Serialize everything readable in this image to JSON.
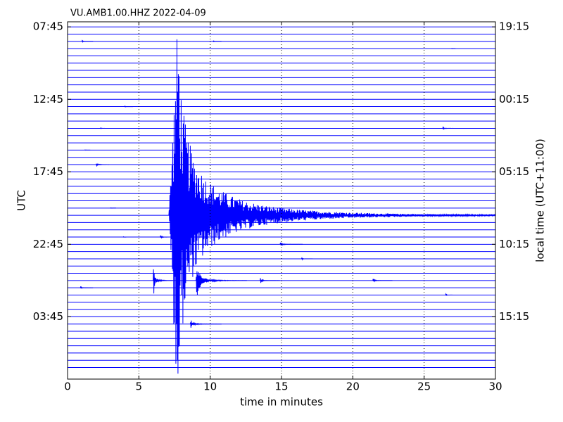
{
  "chart_data": {
    "type": "dayplot",
    "title": "VU.AMB1.00.HHZ 2022-04-09",
    "xlabel": "time in minutes",
    "ylabel": "UTC",
    "y2label": "local time (UTC+11:00)",
    "color": "#0000ff",
    "trace_count": 48,
    "xlim": [
      0,
      30
    ],
    "xticks": [
      0,
      5,
      10,
      15,
      20,
      25,
      30
    ],
    "grid": true,
    "ylim": [
      -0.7,
      48.6
    ],
    "inverted": true,
    "yticks": [
      {
        "value": 0,
        "label": "07:45"
      },
      {
        "value": 10,
        "label": "12:45"
      },
      {
        "value": 20,
        "label": "17:45"
      },
      {
        "value": 30,
        "label": "22:45"
      },
      {
        "value": 40,
        "label": "03:45"
      }
    ],
    "y2ticks": [
      {
        "value": 0,
        "label": "19:15"
      },
      {
        "value": 10,
        "label": "00:15"
      },
      {
        "value": 20,
        "label": "05:15"
      },
      {
        "value": 30,
        "label": "10:15"
      },
      {
        "value": 40,
        "label": "15:15"
      }
    ],
    "bursts": [
      {
        "trace": 2,
        "start": 1.0,
        "duration": 0.8,
        "amplitude": 0.25
      },
      {
        "trace": 2,
        "start": 10.2,
        "duration": 0.6,
        "amplitude": 0.2
      },
      {
        "trace": 3,
        "start": 26.9,
        "duration": 0.3,
        "amplitude": 0.2
      },
      {
        "trace": 11,
        "start": 4.0,
        "duration": 0.6,
        "amplitude": 0.2
      },
      {
        "trace": 14,
        "start": 2.3,
        "duration": 0.5,
        "amplitude": 0.2
      },
      {
        "trace": 14,
        "start": 26.3,
        "duration": 1.3,
        "amplitude": 0.25
      },
      {
        "trace": 17,
        "start": 1.2,
        "duration": 0.4,
        "amplitude": 0.15
      },
      {
        "trace": 19,
        "start": 2.0,
        "duration": 1.8,
        "amplitude": 0.35
      },
      {
        "trace": 25,
        "start": 3.0,
        "duration": 0.4,
        "amplitude": 0.2
      },
      {
        "trace": 26,
        "start": 7.1,
        "duration": 22.9,
        "amplitude": 30
      },
      {
        "trace": 27,
        "start": 12.0,
        "duration": 0.8,
        "amplitude": 0.4
      },
      {
        "trace": 29,
        "start": 6.5,
        "duration": 0.6,
        "amplitude": 1.0
      },
      {
        "trace": 29,
        "start": 3.9,
        "duration": 0.4,
        "amplitude": 0.2
      },
      {
        "trace": 30,
        "start": 14.9,
        "duration": 1.6,
        "amplitude": 0.45
      },
      {
        "trace": 32,
        "start": 16.4,
        "duration": 0.8,
        "amplitude": 0.3
      },
      {
        "trace": 35,
        "start": 6.0,
        "duration": 1.4,
        "amplitude": 3
      },
      {
        "trace": 35,
        "start": 9.0,
        "duration": 3.6,
        "amplitude": 3.5
      },
      {
        "trace": 35,
        "start": 13.5,
        "duration": 1.4,
        "amplitude": 0.6
      },
      {
        "trace": 35,
        "start": 21.4,
        "duration": 1.4,
        "amplitude": 0.5
      },
      {
        "trace": 36,
        "start": 0.9,
        "duration": 0.9,
        "amplitude": 0.35
      },
      {
        "trace": 37,
        "start": 26.5,
        "duration": 0.8,
        "amplitude": 0.3
      },
      {
        "trace": 41,
        "start": 8.6,
        "duration": 2.2,
        "amplitude": 1.0
      }
    ]
  }
}
